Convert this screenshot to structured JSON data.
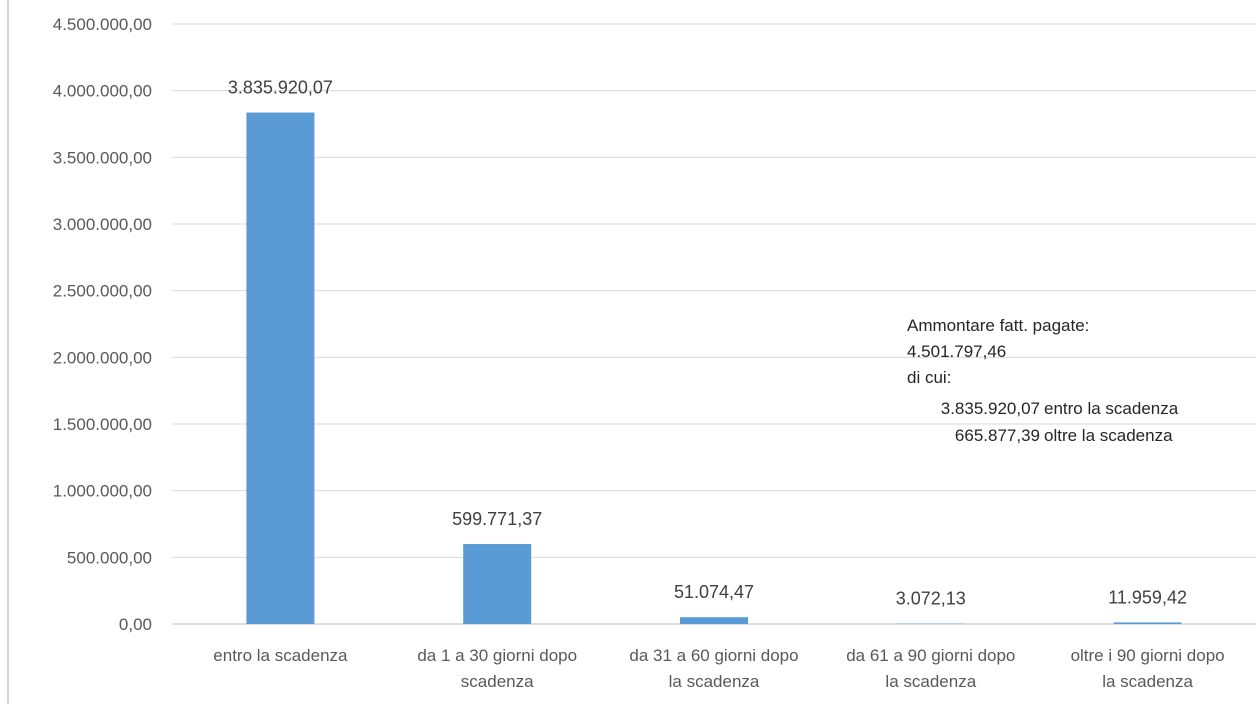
{
  "chart_data": {
    "type": "bar",
    "categories": [
      [
        "entro la scadenza"
      ],
      [
        "da 1 a 30 giorni dopo",
        "scadenza"
      ],
      [
        "da 31 a 60 giorni dopo",
        "la scadenza"
      ],
      [
        "da 61 a 90 giorni dopo",
        "la scadenza"
      ],
      [
        "oltre i 90 giorni dopo",
        "la scadenza"
      ]
    ],
    "values": [
      3835920.07,
      599771.37,
      51074.47,
      3072.13,
      11959.42
    ],
    "data_labels": [
      "3.835.920,07",
      "599.771,37",
      "51.074,47",
      "3.072,13",
      "11.959,42"
    ],
    "ylim": [
      0,
      4500000
    ],
    "yticks": [
      {
        "value": 0,
        "label": "0,00"
      },
      {
        "value": 500000,
        "label": "500.000,00"
      },
      {
        "value": 1000000,
        "label": "1.000.000,00"
      },
      {
        "value": 1500000,
        "label": "1.500.000,00"
      },
      {
        "value": 2000000,
        "label": "2.000.000,00"
      },
      {
        "value": 2500000,
        "label": "2.500.000,00"
      },
      {
        "value": 3000000,
        "label": "3.000.000,00"
      },
      {
        "value": 3500000,
        "label": "3.500.000,00"
      },
      {
        "value": 4000000,
        "label": "4.000.000,00"
      },
      {
        "value": 4500000,
        "label": "4.500.000,00"
      }
    ],
    "grid": true,
    "legend": "none",
    "bar_color": "#5b9bd5",
    "annotation": {
      "title": "Ammontare fatt. pagate:",
      "total": "4.501.797,46",
      "of_which": "di cui:",
      "within_amount": "3.835.920,07",
      "within_text": "entro la scadenza",
      "beyond_amount": "665.877,39",
      "beyond_text": "oltre la scadenza"
    }
  }
}
